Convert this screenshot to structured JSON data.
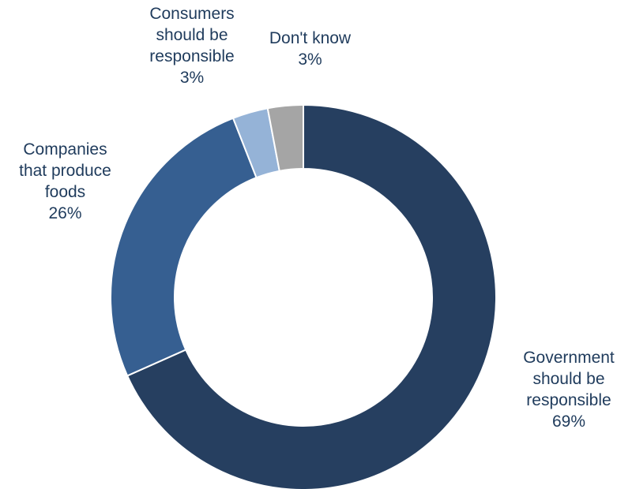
{
  "chart_data": {
    "type": "pie",
    "donut": true,
    "slices": [
      {
        "label_lines": [
          "Government",
          "should be",
          "responsible"
        ],
        "value": 69,
        "value_label": "69%",
        "color": "#263f60"
      },
      {
        "label_lines": [
          "Companies",
          "that produce",
          "foods"
        ],
        "value": 26,
        "value_label": "26%",
        "color": "#365f91"
      },
      {
        "label_lines": [
          "Consumers",
          "should be",
          "responsible"
        ],
        "value": 3,
        "value_label": "3%",
        "color": "#95b3d7"
      },
      {
        "label_lines": [
          "Don't know"
        ],
        "value": 3,
        "value_label": "3%",
        "color": "#a5a5a5"
      }
    ],
    "legend": "none",
    "label_color": "#1f3b5c"
  }
}
